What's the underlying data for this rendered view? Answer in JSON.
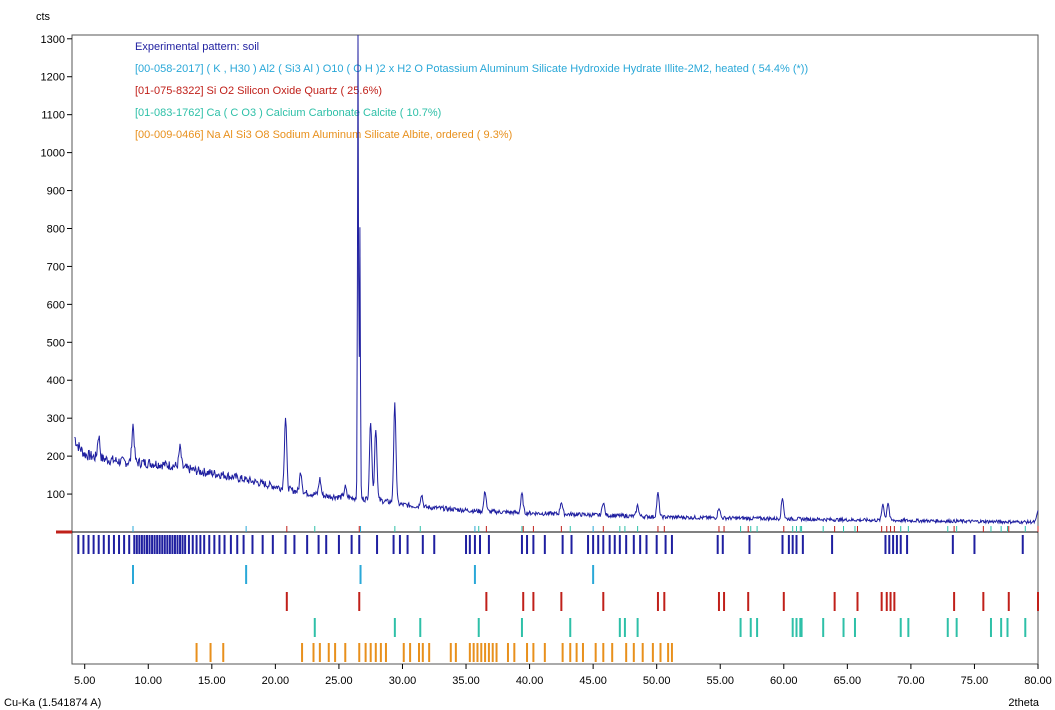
{
  "chart_data": {
    "type": "line",
    "y_unit": "cts",
    "x_unit": "2theta",
    "radiation_label": "Cu-Ka (1.541874 A)",
    "xlim": [
      4,
      80
    ],
    "ylim": [
      0,
      1310
    ],
    "x_ticks": [
      5,
      10,
      15,
      20,
      25,
      30,
      35,
      40,
      45,
      50,
      55,
      60,
      65,
      70,
      75,
      80
    ],
    "x_tick_labels": [
      "5.00",
      "10.00",
      "15.00",
      "20.00",
      "25.00",
      "30.00",
      "35.00",
      "40.00",
      "45.00",
      "50.00",
      "55.00",
      "60.00",
      "65.00",
      "70.00",
      "75.00",
      "80.00"
    ],
    "y_ticks": [
      100,
      200,
      300,
      400,
      500,
      600,
      700,
      800,
      900,
      1000,
      1100,
      1200,
      1300
    ],
    "grid": false,
    "legend_position": "top-left",
    "legend": [
      {
        "text": "Experimental pattern: soil",
        "color": "#1f1fa0"
      },
      {
        "text": "[00-058-2017] ( K , H30 ) Al2 ( Si3 Al ) O10 ( O H )2 x H2 O Potassium Aluminum Silicate Hydroxide Hydrate Illite-2M2, heated ( 54.4% (*))",
        "color": "#2aa8d8"
      },
      {
        "text": "[01-075-8322] Si O2 Silicon Oxide Quartz ( 25.6%)",
        "color": "#c0201a"
      },
      {
        "text": "[01-083-1762] Ca ( C O3 ) Calcium Carbonate Calcite ( 10.7%)",
        "color": "#2ec0a8"
      },
      {
        "text": "[00-009-0466] Na Al Si3 O8 Sodium Aluminum Silicate Albite, ordered ( 9.3%)",
        "color": "#e8901c"
      }
    ],
    "series": [
      {
        "color": "#1f1fa0",
        "background": [
          [
            4.2,
            240
          ],
          [
            5,
            205
          ],
          [
            6,
            195
          ],
          [
            7,
            190
          ],
          [
            8,
            185
          ],
          [
            10,
            182
          ],
          [
            12,
            175
          ],
          [
            14,
            160
          ],
          [
            16,
            150
          ],
          [
            18,
            135
          ],
          [
            20,
            120
          ],
          [
            22,
            105
          ],
          [
            24,
            95
          ],
          [
            26,
            90
          ],
          [
            28,
            85
          ],
          [
            30,
            72
          ],
          [
            32,
            65
          ],
          [
            34,
            60
          ],
          [
            36,
            55
          ],
          [
            40,
            50
          ],
          [
            45,
            45
          ],
          [
            50,
            40
          ],
          [
            55,
            37
          ],
          [
            60,
            35
          ],
          [
            65,
            32
          ],
          [
            70,
            30
          ],
          [
            75,
            28
          ],
          [
            80,
            26
          ]
        ],
        "peaks": [
          [
            4.2,
            250
          ],
          [
            6.1,
            255
          ],
          [
            8.8,
            283
          ],
          [
            12.5,
            222
          ],
          [
            20.8,
            302
          ],
          [
            22.0,
            160
          ],
          [
            23.5,
            140
          ],
          [
            25.5,
            118
          ],
          [
            26.5,
            1310
          ],
          [
            26.65,
            795
          ],
          [
            27.5,
            295
          ],
          [
            27.9,
            275
          ],
          [
            29.4,
            335
          ],
          [
            31.5,
            100
          ],
          [
            36.5,
            108
          ],
          [
            39.4,
            100
          ],
          [
            42.5,
            80
          ],
          [
            45.8,
            80
          ],
          [
            48.5,
            70
          ],
          [
            50.1,
            102
          ],
          [
            54.9,
            65
          ],
          [
            59.9,
            90
          ],
          [
            67.8,
            75
          ],
          [
            68.2,
            78
          ],
          [
            80.0,
            56
          ]
        ]
      }
    ],
    "reference_patterns": [
      {
        "color": "#1f1fa0",
        "row": 0,
        "positions": [
          4.5,
          4.9,
          5.3,
          5.7,
          6.1,
          6.5,
          6.9,
          7.3,
          7.7,
          8.1,
          8.5,
          8.9,
          9.1,
          9.3,
          9.5,
          9.7,
          9.9,
          10.1,
          10.3,
          10.5,
          10.7,
          10.9,
          11.1,
          11.3,
          11.5,
          11.7,
          11.9,
          12.1,
          12.3,
          12.5,
          12.7,
          12.9,
          13.2,
          13.5,
          13.8,
          14.1,
          14.4,
          14.8,
          15.2,
          15.6,
          16.0,
          16.5,
          17.0,
          17.5,
          18.2,
          19.0,
          19.8,
          20.8,
          21.5,
          22.5,
          23.4,
          24.0,
          25.0,
          26.0,
          26.6,
          28.0,
          29.3,
          29.8,
          30.4,
          31.6,
          32.5,
          35.0,
          35.3,
          35.7,
          36.1,
          36.8,
          39.4,
          39.8,
          40.3,
          41.2,
          42.6,
          43.3,
          44.6,
          45.0,
          45.4,
          45.8,
          46.3,
          46.7,
          47.1,
          47.6,
          48.2,
          48.7,
          49.2,
          50.0,
          50.7,
          51.2,
          54.8,
          55.2,
          57.3,
          59.9,
          60.4,
          60.7,
          61.0,
          61.5,
          63.8,
          68.0,
          68.3,
          68.6,
          68.9,
          69.2,
          69.7,
          73.3,
          75.0,
          78.8
        ]
      },
      {
        "color": "#2aa8d8",
        "row": 1,
        "positions": [
          8.8,
          17.7,
          26.7,
          35.7,
          45.0
        ]
      },
      {
        "color": "#c0201a",
        "row": 2,
        "positions": [
          20.9,
          26.6,
          36.6,
          39.5,
          40.3,
          42.5,
          45.8,
          50.1,
          50.6,
          54.9,
          55.3,
          57.2,
          60.0,
          64.0,
          65.8,
          67.7,
          68.1,
          68.4,
          68.7,
          73.4,
          75.7,
          77.7,
          80.0
        ]
      },
      {
        "color": "#2ec0a8",
        "row": 3,
        "positions": [
          23.1,
          29.4,
          31.4,
          36.0,
          39.4,
          43.2,
          47.1,
          47.5,
          48.5,
          56.6,
          57.4,
          57.9,
          60.7,
          61.0,
          61.3,
          61.4,
          63.1,
          64.7,
          65.6,
          69.2,
          69.8,
          72.9,
          73.6,
          76.3,
          77.1,
          77.6,
          79.0
        ]
      },
      {
        "color": "#e8901c",
        "row": 4,
        "positions": [
          13.8,
          14.9,
          15.9,
          22.1,
          23.0,
          23.5,
          24.2,
          24.7,
          25.5,
          26.6,
          27.1,
          27.5,
          27.9,
          28.3,
          28.7,
          30.1,
          30.6,
          31.3,
          31.6,
          32.1,
          33.8,
          34.2,
          35.3,
          35.6,
          35.9,
          36.2,
          36.5,
          36.8,
          37.1,
          37.4,
          38.3,
          38.8,
          39.8,
          40.3,
          41.2,
          42.6,
          43.2,
          43.7,
          44.2,
          45.2,
          45.8,
          46.5,
          47.6,
          48.2,
          48.9,
          49.7,
          50.3,
          50.9,
          51.2
        ]
      }
    ],
    "marker_line_color": "#c0201a"
  }
}
